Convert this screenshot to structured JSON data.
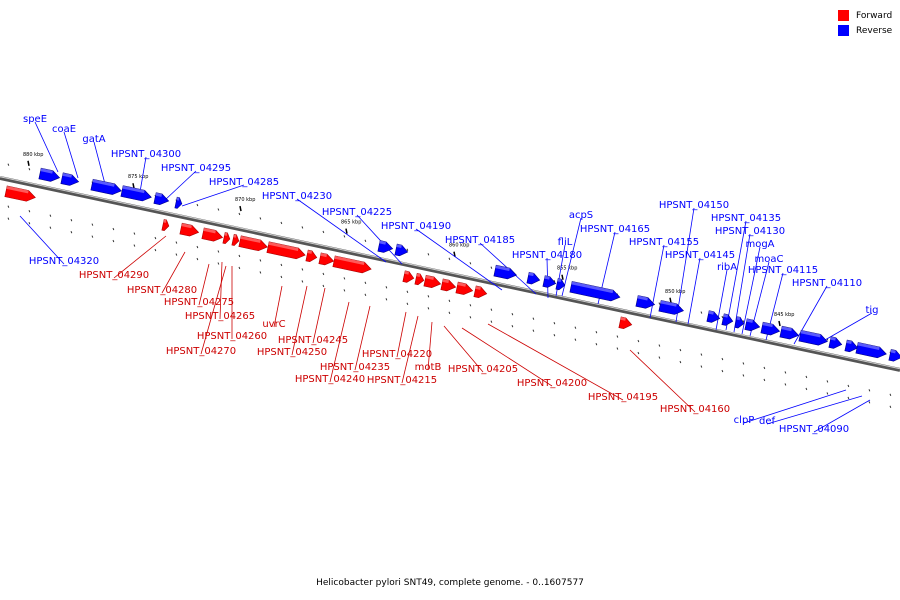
{
  "legend": {
    "forward_label": "Forward",
    "reverse_label": "Reverse",
    "forward_color": "#ff0000",
    "reverse_color": "#0000ff"
  },
  "caption": "Helicobacter pylori SNT49, complete genome. - 0..1607577",
  "scale_labels": [
    "880 kbp",
    "875 kbp",
    "870 kbp",
    "865 kbp",
    "860 kbp",
    "855 kbp",
    "850 kbp",
    "845 kbp"
  ],
  "genes_forward": [
    "HPSNT_04290",
    "HPSNT_04280",
    "HPSNT_04275",
    "HPSNT_04260",
    "HPSNT_04265",
    "HPSNT_04270",
    "uvrC",
    "HPSNT_04250",
    "HPSNT_04245",
    "HPSNT_04240",
    "HPSNT_04235",
    "HPSNT_04220",
    "HPSNT_04215",
    "motB",
    "HPSNT_04205",
    "HPSNT_04200",
    "HPSNT_04195",
    "HPSNT_04160"
  ],
  "genes_reverse": [
    "speE",
    "coaE",
    "gatA",
    "HPSNT_04300",
    "HPSNT_04295",
    "HPSNT_04285",
    "HPSNT_04230",
    "HPSNT_04225",
    "HPSNT_04190",
    "HPSNT_04185",
    "HPSNT_04180",
    "fliL",
    "acpS",
    "HPSNT_04165",
    "HPSNT_04155",
    "HPSNT_04150",
    "HPSNT_04145",
    "HPSNT_04135",
    "HPSNT_04130",
    "mogA",
    "ribA",
    "moaC",
    "HPSNT_04115",
    "HPSNT_04110",
    "tig",
    "HPSNT_04320",
    "clpP",
    "def",
    "HPSNT_04090"
  ]
}
